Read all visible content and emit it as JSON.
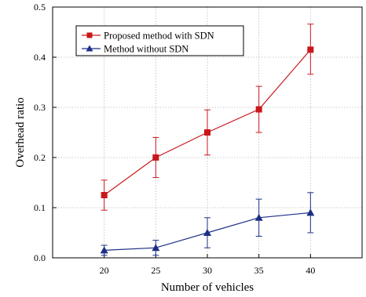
{
  "chart_data": {
    "type": "line",
    "title": "",
    "xlabel": "Number of vehicles",
    "ylabel": "Overhead ratio",
    "x": [
      20,
      25,
      30,
      35,
      40
    ],
    "x_ticks": [
      "20",
      "25",
      "30",
      "35",
      "40"
    ],
    "xlim": [
      15,
      45
    ],
    "ylim": [
      0,
      0.5
    ],
    "y_ticks": [
      "0.0",
      "0.1",
      "0.2",
      "0.3",
      "0.4",
      "0.5"
    ],
    "grid": true,
    "legend_position": "top-left",
    "series": [
      {
        "name": "Proposed method with SDN",
        "color": "#c8171c",
        "marker": "square",
        "values": [
          0.125,
          0.2,
          0.25,
          0.296,
          0.415
        ],
        "error_low": [
          0.095,
          0.16,
          0.205,
          0.25,
          0.366
        ],
        "error_high": [
          0.155,
          0.24,
          0.295,
          0.342,
          0.466
        ]
      },
      {
        "name": "Method without SDN",
        "color": "#1c2f86",
        "marker": "triangle",
        "values": [
          0.015,
          0.02,
          0.05,
          0.08,
          0.09
        ],
        "error_low": [
          0.005,
          0.005,
          0.02,
          0.043,
          0.05
        ],
        "error_high": [
          0.025,
          0.035,
          0.08,
          0.117,
          0.13
        ]
      }
    ]
  }
}
